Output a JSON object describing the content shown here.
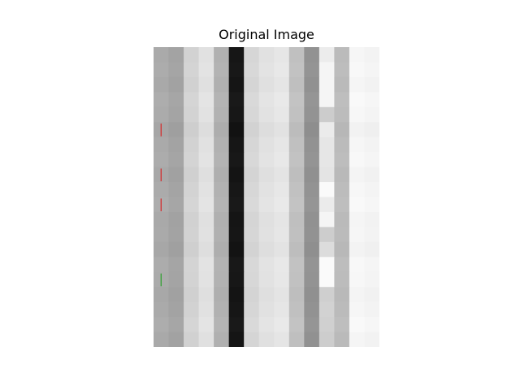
{
  "figure": {
    "title": "Original Image"
  },
  "image": {
    "rows": 20,
    "cols": 15,
    "column_base_gray": [
      170,
      163,
      210,
      225,
      177,
      22,
      214,
      225,
      230,
      192,
      146,
      235,
      187,
      246,
      243
    ],
    "row_modulation": [
      0,
      2,
      -1,
      3,
      1,
      -4,
      0,
      2,
      -2,
      1,
      3,
      -1,
      0,
      -3,
      2,
      1,
      -2,
      0,
      3,
      -1
    ],
    "column11_values": [
      236,
      245,
      245,
      245,
      204,
      235,
      230,
      230,
      228,
      250,
      235,
      245,
      205,
      220,
      250,
      250,
      207,
      210,
      208,
      205
    ],
    "markers": [
      {
        "row": 5,
        "col": 0,
        "color": "#d62728"
      },
      {
        "row": 8,
        "col": 0,
        "color": "#d62728"
      },
      {
        "row": 10,
        "col": 0,
        "color": "#d62728"
      },
      {
        "row": 15,
        "col": 0,
        "color": "#2ca02c"
      }
    ]
  }
}
